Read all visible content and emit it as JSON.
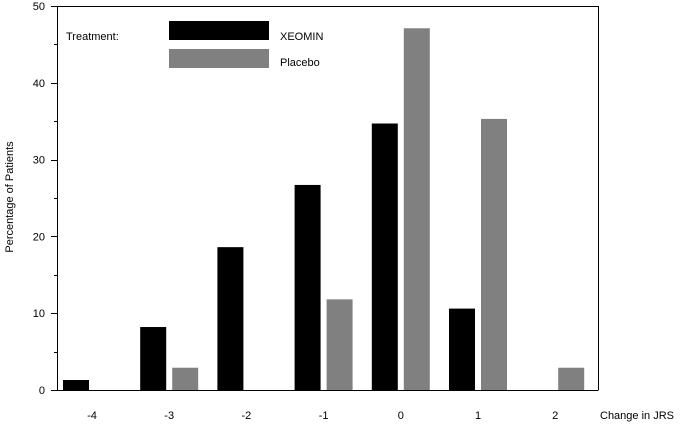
{
  "chart_data": {
    "type": "bar",
    "title": "",
    "xlabel": "Change in JRS",
    "ylabel": "Percentage of Patients",
    "categories": [
      "-4",
      "-3",
      "-2",
      "-1",
      "0",
      "1",
      "2"
    ],
    "series": [
      {
        "name": "XEOMIN",
        "color": "#000000",
        "values": [
          1.3,
          8.2,
          18.6,
          26.7,
          34.7,
          10.6,
          0
        ]
      },
      {
        "name": "Placebo",
        "color": "#808080",
        "values": [
          0,
          2.9,
          0,
          11.8,
          47.1,
          35.3,
          2.9
        ]
      }
    ],
    "ylim": [
      0,
      50
    ],
    "yticks": [
      0,
      10,
      20,
      30,
      40,
      50
    ],
    "grid": false,
    "legend": {
      "title": "Treatment:",
      "placement": "top-left"
    }
  }
}
